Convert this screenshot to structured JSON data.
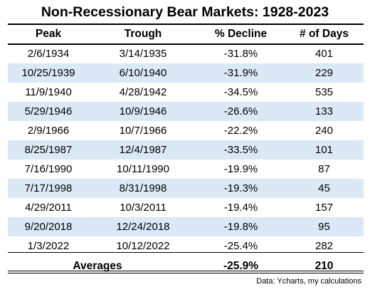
{
  "title": "Non-Recessionary Bear Markets: 1928-2023",
  "columns": [
    "Peak",
    "Trough",
    "% Decline",
    "# of Days"
  ],
  "rows": [
    [
      "2/6/1934",
      "3/14/1935",
      "-31.8%",
      "401"
    ],
    [
      "10/25/1939",
      "6/10/1940",
      "-31.9%",
      "229"
    ],
    [
      "11/9/1940",
      "4/28/1942",
      "-34.5%",
      "535"
    ],
    [
      "5/29/1946",
      "10/9/1946",
      "-26.6%",
      "133"
    ],
    [
      "2/9/1966",
      "10/7/1966",
      "-22.2%",
      "240"
    ],
    [
      "8/25/1987",
      "12/4/1987",
      "-33.5%",
      "101"
    ],
    [
      "7/16/1990",
      "10/11/1990",
      "-19.9%",
      "87"
    ],
    [
      "7/17/1998",
      "8/31/1998",
      "-19.3%",
      "45"
    ],
    [
      "4/29/2011",
      "10/3/2011",
      "-19.4%",
      "157"
    ],
    [
      "9/20/2018",
      "12/24/2018",
      "-19.8%",
      "95"
    ],
    [
      "1/3/2022",
      "10/12/2022",
      "-25.4%",
      "282"
    ]
  ],
  "averages": {
    "label": "Averages",
    "decline": "-25.9%",
    "days": "210"
  },
  "source": "Data: Ycharts, my calculations",
  "colors": {
    "stripe": "#dbe9f7",
    "rule": "#000000"
  }
}
